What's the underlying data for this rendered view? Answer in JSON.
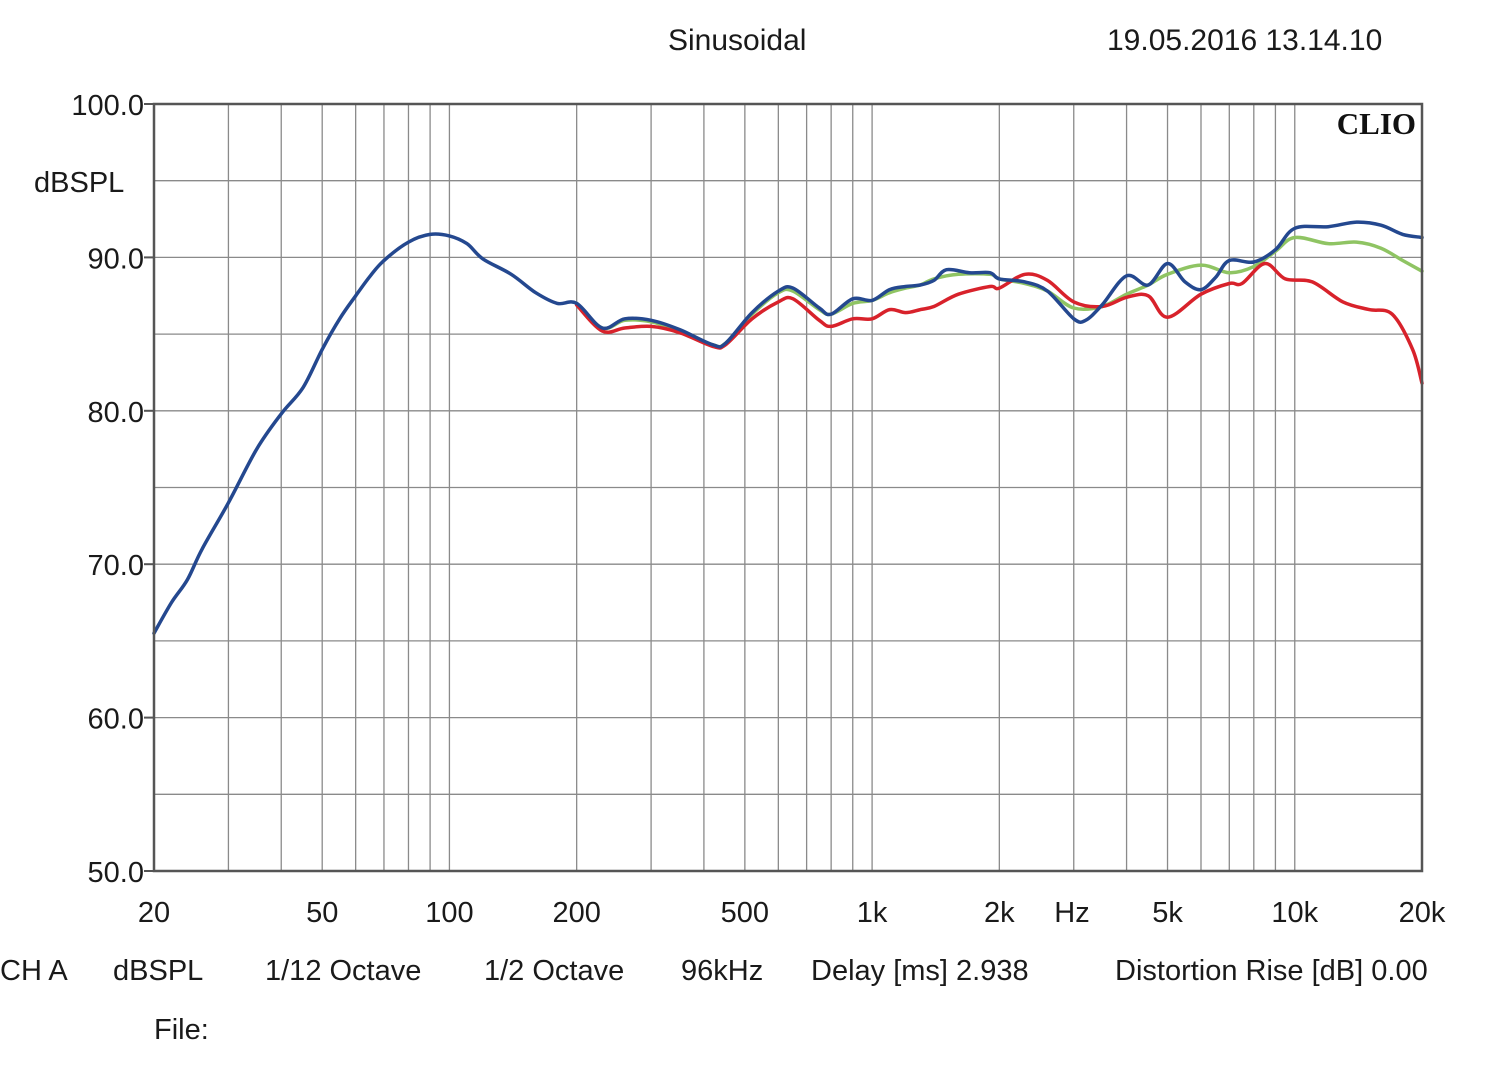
{
  "header": {
    "title": "Sinusoidal",
    "timestamp": "19.05.2016 13.14.10"
  },
  "brand": "CLIO",
  "footer": {
    "channel": "CH A",
    "unit": "dBSPL",
    "resolution": "1/12 Octave",
    "smoothing": "1/2 Octave",
    "sample_rate": "96kHz",
    "delay": "Delay [ms] 2.938",
    "distortion": "Distortion Rise [dB] 0.00",
    "file_label": "File:"
  },
  "chart_data": {
    "type": "line",
    "title": "Sinusoidal",
    "xlabel": "Hz",
    "ylabel": "dBSPL",
    "x_scale": "log",
    "xlim": [
      20,
      20000
    ],
    "ylim": [
      50,
      100
    ],
    "grid": true,
    "x_ticks": [
      {
        "value": 20,
        "label": "20"
      },
      {
        "value": 50,
        "label": "50"
      },
      {
        "value": 100,
        "label": "100"
      },
      {
        "value": 200,
        "label": "200"
      },
      {
        "value": 500,
        "label": "500"
      },
      {
        "value": 1000,
        "label": "1k"
      },
      {
        "value": 2000,
        "label": "2k"
      },
      {
        "value": 5000,
        "label": "5k"
      },
      {
        "value": 10000,
        "label": "10k"
      },
      {
        "value": 20000,
        "label": "20k"
      }
    ],
    "y_ticks": [
      {
        "value": 100,
        "label": "100.0"
      },
      {
        "value": 90,
        "label": "90.0"
      },
      {
        "value": 80,
        "label": "80.0"
      },
      {
        "value": 70,
        "label": "70.0"
      },
      {
        "value": 60,
        "label": "60.0"
      },
      {
        "value": 50,
        "label": "50.0"
      }
    ],
    "series": [
      {
        "color": "#8fc463",
        "points": [
          [
            200,
            87.0
          ],
          [
            230,
            85.4
          ],
          [
            260,
            85.9
          ],
          [
            300,
            85.8
          ],
          [
            350,
            85.2
          ],
          [
            420,
            84.3
          ],
          [
            450,
            84.4
          ],
          [
            520,
            86.3
          ],
          [
            600,
            87.7
          ],
          [
            650,
            87.8
          ],
          [
            750,
            86.6
          ],
          [
            800,
            86.3
          ],
          [
            900,
            87.0
          ],
          [
            1000,
            87.2
          ],
          [
            1100,
            87.7
          ],
          [
            1200,
            88.0
          ],
          [
            1300,
            88.2
          ],
          [
            1400,
            88.6
          ],
          [
            1600,
            88.9
          ],
          [
            1900,
            88.9
          ],
          [
            2000,
            88.6
          ],
          [
            2300,
            88.3
          ],
          [
            2600,
            87.8
          ],
          [
            3000,
            86.7
          ],
          [
            3500,
            86.8
          ],
          [
            4000,
            87.6
          ],
          [
            4500,
            88.2
          ],
          [
            5000,
            88.9
          ],
          [
            6000,
            89.5
          ],
          [
            7000,
            89.0
          ],
          [
            8000,
            89.4
          ],
          [
            9000,
            90.4
          ],
          [
            10000,
            91.3
          ],
          [
            12000,
            90.9
          ],
          [
            14000,
            91.0
          ],
          [
            16000,
            90.6
          ],
          [
            18000,
            89.8
          ],
          [
            20000,
            89.1
          ]
        ]
      },
      {
        "color": "#d8222b",
        "points": [
          [
            200,
            86.9
          ],
          [
            230,
            85.2
          ],
          [
            260,
            85.4
          ],
          [
            300,
            85.5
          ],
          [
            350,
            85.1
          ],
          [
            420,
            84.2
          ],
          [
            450,
            84.3
          ],
          [
            520,
            86.0
          ],
          [
            600,
            87.1
          ],
          [
            650,
            87.3
          ],
          [
            750,
            85.9
          ],
          [
            800,
            85.5
          ],
          [
            900,
            86.0
          ],
          [
            1000,
            86.0
          ],
          [
            1100,
            86.6
          ],
          [
            1200,
            86.4
          ],
          [
            1300,
            86.6
          ],
          [
            1400,
            86.8
          ],
          [
            1600,
            87.6
          ],
          [
            1900,
            88.1
          ],
          [
            2000,
            88.0
          ],
          [
            2300,
            88.9
          ],
          [
            2600,
            88.5
          ],
          [
            3000,
            87.1
          ],
          [
            3500,
            86.8
          ],
          [
            4000,
            87.4
          ],
          [
            4500,
            87.5
          ],
          [
            5000,
            86.1
          ],
          [
            6000,
            87.6
          ],
          [
            7000,
            88.3
          ],
          [
            7500,
            88.3
          ],
          [
            8500,
            89.6
          ],
          [
            9500,
            88.6
          ],
          [
            11000,
            88.4
          ],
          [
            13000,
            87.1
          ],
          [
            15000,
            86.6
          ],
          [
            17000,
            86.3
          ],
          [
            19000,
            84.0
          ],
          [
            20000,
            81.8
          ]
        ]
      },
      {
        "color": "#24488f",
        "points": [
          [
            20,
            65.5
          ],
          [
            22,
            67.5
          ],
          [
            24,
            69.0
          ],
          [
            26,
            71.0
          ],
          [
            30,
            74.0
          ],
          [
            35,
            77.5
          ],
          [
            40,
            79.8
          ],
          [
            45,
            81.5
          ],
          [
            50,
            84.0
          ],
          [
            55,
            86.0
          ],
          [
            60,
            87.5
          ],
          [
            65,
            88.8
          ],
          [
            70,
            89.8
          ],
          [
            80,
            91.0
          ],
          [
            90,
            91.5
          ],
          [
            100,
            91.4
          ],
          [
            110,
            90.9
          ],
          [
            120,
            89.9
          ],
          [
            140,
            88.9
          ],
          [
            160,
            87.7
          ],
          [
            180,
            87.0
          ],
          [
            200,
            87.0
          ],
          [
            230,
            85.4
          ],
          [
            260,
            86.0
          ],
          [
            300,
            85.9
          ],
          [
            350,
            85.3
          ],
          [
            420,
            84.3
          ],
          [
            450,
            84.4
          ],
          [
            520,
            86.4
          ],
          [
            600,
            87.8
          ],
          [
            650,
            88.0
          ],
          [
            750,
            86.7
          ],
          [
            800,
            86.3
          ],
          [
            900,
            87.3
          ],
          [
            1000,
            87.2
          ],
          [
            1100,
            87.9
          ],
          [
            1200,
            88.1
          ],
          [
            1300,
            88.2
          ],
          [
            1400,
            88.5
          ],
          [
            1500,
            89.2
          ],
          [
            1700,
            89.0
          ],
          [
            1900,
            89.0
          ],
          [
            2000,
            88.6
          ],
          [
            2300,
            88.4
          ],
          [
            2600,
            87.8
          ],
          [
            3000,
            86.0
          ],
          [
            3200,
            85.9
          ],
          [
            3500,
            86.9
          ],
          [
            4000,
            88.8
          ],
          [
            4500,
            88.2
          ],
          [
            5000,
            89.6
          ],
          [
            5500,
            88.4
          ],
          [
            6000,
            87.9
          ],
          [
            6500,
            88.7
          ],
          [
            7000,
            89.8
          ],
          [
            8000,
            89.7
          ],
          [
            9000,
            90.5
          ],
          [
            10000,
            91.9
          ],
          [
            12000,
            92.0
          ],
          [
            14000,
            92.3
          ],
          [
            16000,
            92.1
          ],
          [
            18000,
            91.5
          ],
          [
            20000,
            91.3
          ]
        ]
      }
    ]
  }
}
